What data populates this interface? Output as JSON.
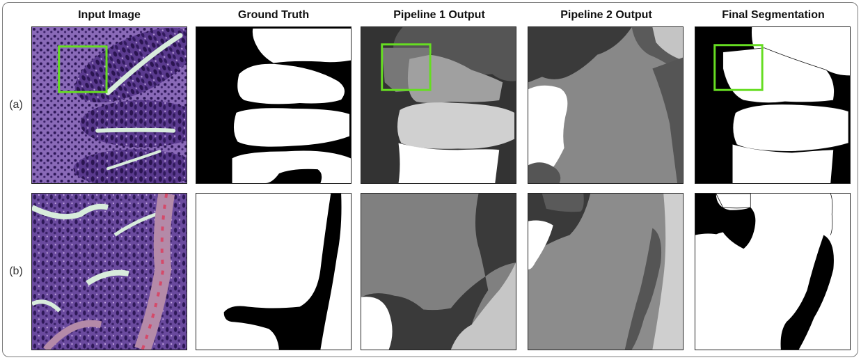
{
  "columns": [
    {
      "title": "Input Image"
    },
    {
      "title": "Ground Truth"
    },
    {
      "title": "Pipeline 1 Output"
    },
    {
      "title": "Pipeline 2 Output"
    },
    {
      "title": "Final Segmentation"
    }
  ],
  "rows": [
    {
      "label": "(a)"
    },
    {
      "label": "(b)"
    }
  ],
  "colors": {
    "highlight_box": "#66dd22",
    "tissue_dark": "#3e2470",
    "tissue_light": "#9a78c2",
    "lumen": "#d8ecdc"
  }
}
